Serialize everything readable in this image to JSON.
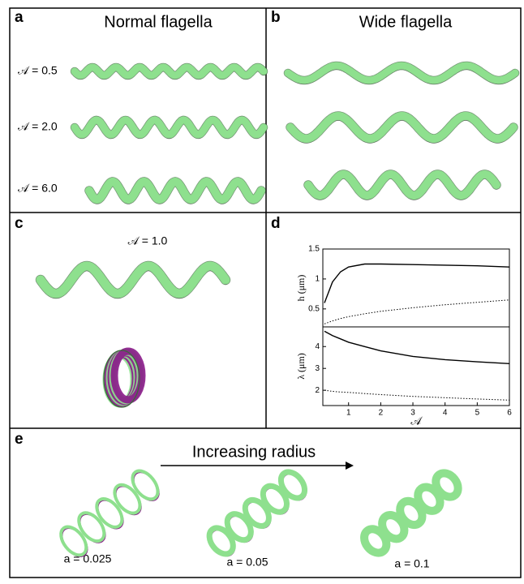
{
  "panels": {
    "a": {
      "letter": "a",
      "title": "Normal flagella",
      "labels": [
        "𝒜 = 0.5",
        "𝒜 = 2.0",
        "𝒜 = 6.0"
      ]
    },
    "b": {
      "letter": "b",
      "title": "Wide flagella"
    },
    "c": {
      "letter": "c",
      "label": "𝒜  = 1.0"
    },
    "d": {
      "letter": "d"
    },
    "e": {
      "letter": "e",
      "title": "Increasing radius",
      "labels": [
        "a = 0.025",
        "a = 0.05",
        "a = 0.1"
      ]
    }
  },
  "chart_data": [
    {
      "type": "line",
      "ylabel": "h (μm)",
      "xlim": [
        0.2,
        6
      ],
      "ylim": [
        0.2,
        1.5
      ],
      "yticks": [
        0.5,
        1,
        1.5
      ],
      "x": [
        0.25,
        0.5,
        0.75,
        1,
        1.5,
        2,
        3,
        4,
        5,
        6
      ],
      "series": [
        {
          "color": "#000000",
          "dash": "solid",
          "values": [
            0.6,
            0.95,
            1.12,
            1.2,
            1.25,
            1.25,
            1.24,
            1.23,
            1.22,
            1.2
          ]
        },
        {
          "color": "#000000",
          "dash": "dotted",
          "values": [
            0.25,
            0.3,
            0.34,
            0.37,
            0.42,
            0.46,
            0.52,
            0.57,
            0.61,
            0.65
          ]
        }
      ]
    },
    {
      "type": "line",
      "ylabel": "λ (μm)",
      "xlabel": "𝒜",
      "xlim": [
        0.2,
        6
      ],
      "ylim": [
        1.3,
        4.9
      ],
      "yticks": [
        2,
        3,
        4
      ],
      "xticks": [
        1,
        2,
        3,
        4,
        5,
        6
      ],
      "x": [
        0.25,
        0.5,
        0.75,
        1,
        1.5,
        2,
        3,
        4,
        5,
        6
      ],
      "series": [
        {
          "color": "#000000",
          "dash": "solid",
          "values": [
            4.7,
            4.5,
            4.35,
            4.2,
            4.0,
            3.8,
            3.55,
            3.4,
            3.3,
            3.22
          ]
        },
        {
          "color": "#000000",
          "dash": "dotted",
          "values": [
            2.0,
            1.95,
            1.92,
            1.9,
            1.85,
            1.8,
            1.72,
            1.66,
            1.6,
            1.55
          ]
        }
      ]
    }
  ]
}
